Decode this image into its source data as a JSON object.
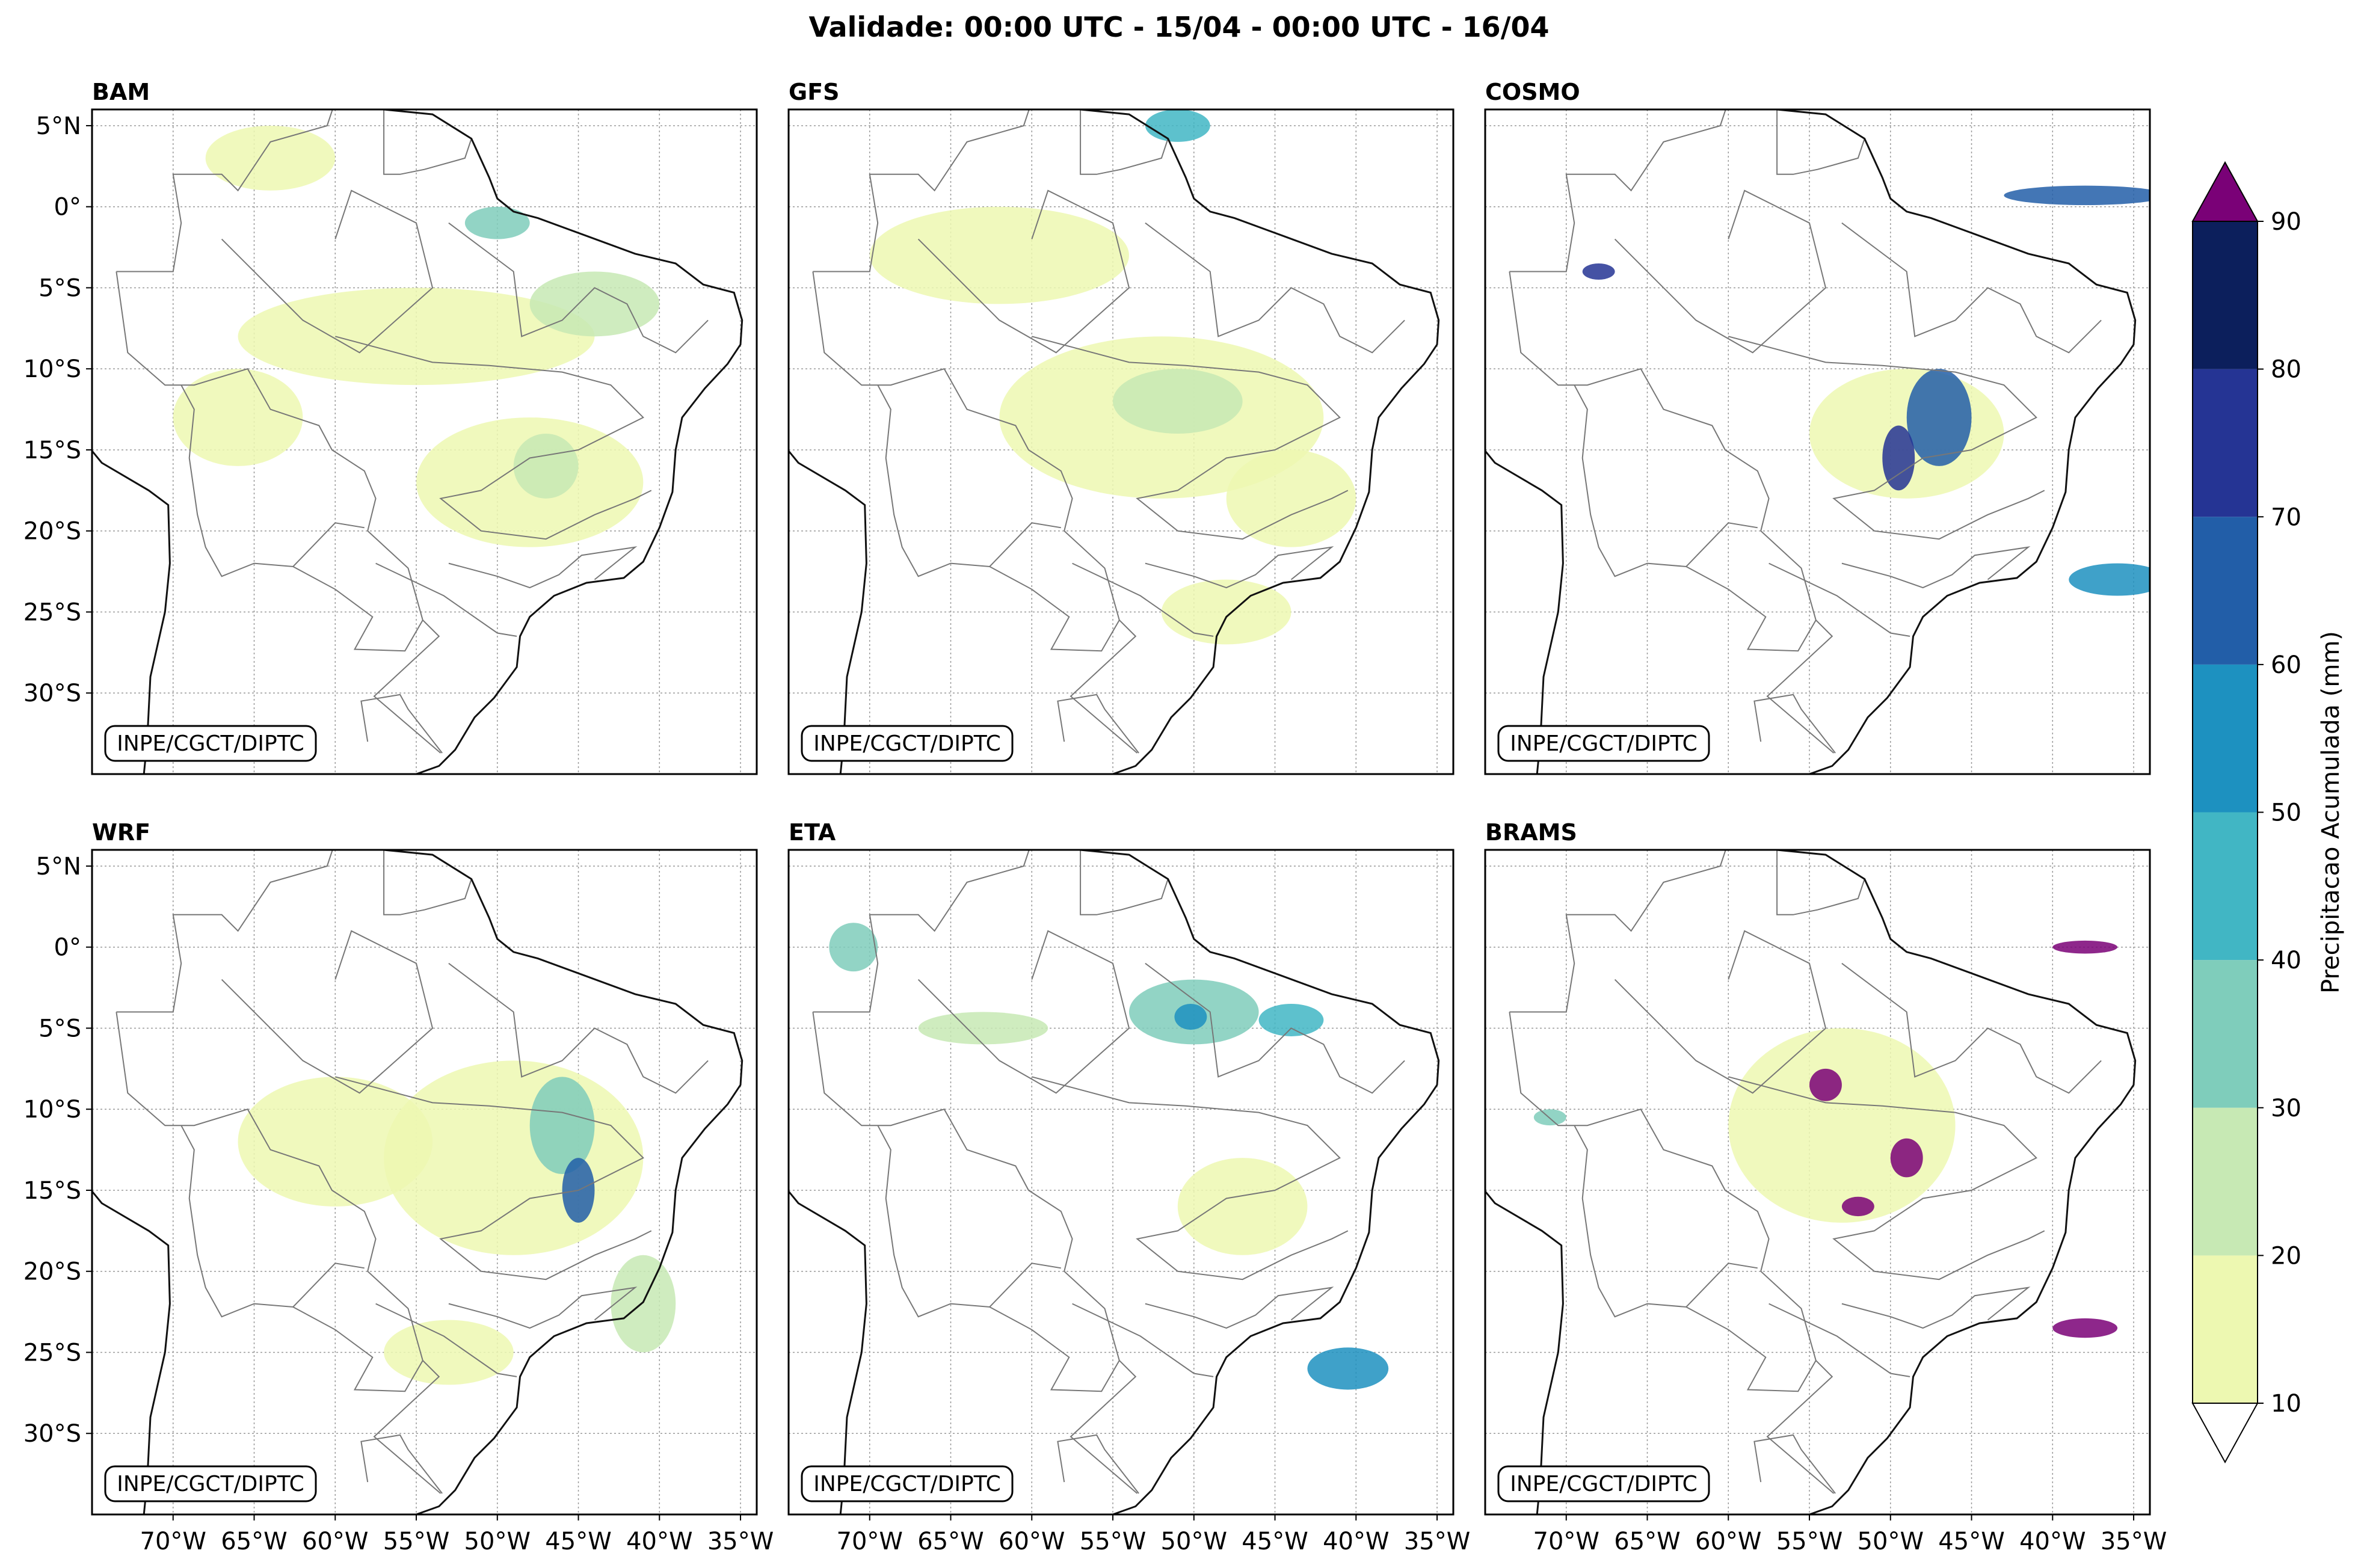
{
  "title": "Validade: 00:00 UTC - 15/04 - 00:00 UTC - 16/04",
  "credit": "INPE/CGCT/DIPTC",
  "panels": [
    {
      "name": "BAM"
    },
    {
      "name": "GFS"
    },
    {
      "name": "COSMO"
    },
    {
      "name": "WRF"
    },
    {
      "name": "ETA"
    },
    {
      "name": "BRAMS"
    }
  ],
  "lat_labels": [
    "5°N",
    "0°",
    "5°S",
    "10°S",
    "15°S",
    "20°S",
    "25°S",
    "30°S"
  ],
  "lon_labels": [
    "70°W",
    "65°W",
    "60°W",
    "55°W",
    "50°W",
    "45°W",
    "40°W",
    "35°W"
  ],
  "colorbar": {
    "label": "Precipitacao Acumulada (mm)",
    "ticks": [
      "10",
      "20",
      "30",
      "40",
      "50",
      "60",
      "70",
      "80",
      "90"
    ],
    "colors": [
      "#edf8b1",
      "#c7e9b4",
      "#7fcdbb",
      "#41b6c4",
      "#1d91c0",
      "#225ea8",
      "#253494",
      "#0c1f5c"
    ],
    "over_color": "#7a0177",
    "under_color": "#ffffff"
  }
}
